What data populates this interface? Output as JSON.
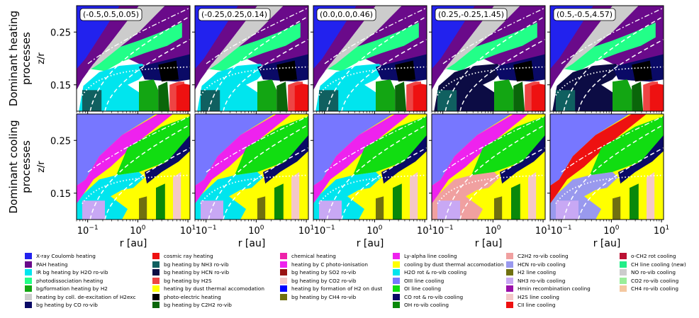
{
  "chart_data": {
    "type": "heatmap",
    "panel_titles": [
      "(-0.5,0.5,0.05)",
      "(-0.25,0.25,0.14)",
      "(0.0,0.0,0.46)",
      "(0.25,-0.25,1.45)",
      "(0.5,-0.5,4.57)"
    ],
    "row_labels": [
      [
        "Dominant heating",
        "processes"
      ],
      [
        "Dominant cooling",
        "processes"
      ]
    ],
    "xlabel": "r [au]",
    "ylabel": "z/r",
    "x_scale": "log",
    "xlim": [
      0.06,
      11
    ],
    "ylim": [
      0.1,
      0.3
    ],
    "x_ticks": [
      {
        "value": 0.1,
        "base": "10",
        "exp": "−1"
      },
      {
        "value": 1,
        "base": "10",
        "exp": "0"
      },
      {
        "value": 10,
        "base": "10",
        "exp": "1"
      }
    ],
    "y_ticks": [
      {
        "value": 0.15,
        "label": "0.15"
      },
      {
        "value": 0.25,
        "label": "0.25"
      }
    ],
    "heating_legend": [
      {
        "label": "X-ray Coulomb heating",
        "color": "#2222ee"
      },
      {
        "label": "PAH heating",
        "color": "#6a0a8a"
      },
      {
        "label": "IR bg heating by H2O ro-vib",
        "color": "#00e5ee"
      },
      {
        "label": "photodissociation heating",
        "color": "#22ff88"
      },
      {
        "label": "bg/formation heating by H2",
        "color": "#13a613"
      },
      {
        "label": "heating by coll. de-excitation of H2exc",
        "color": "#cccccc"
      },
      {
        "label": "bg heating by CO ro-vib",
        "color": "#0a0a66"
      },
      {
        "label": "cosmic ray heating",
        "color": "#ee1111"
      },
      {
        "label": "bg heating by NH3 ro-vib",
        "color": "#106060"
      },
      {
        "label": "bg heating by HCN ro-vib",
        "color": "#0c0c44"
      },
      {
        "label": "bg heating by H2S",
        "color": "#ee4444"
      },
      {
        "label": "heating by dust thermal accomodation",
        "color": "#ffff00"
      },
      {
        "label": "photo-electric heating",
        "color": "#000000"
      },
      {
        "label": "bg heating by C2H2 ro-vib",
        "color": "#0a660a"
      },
      {
        "label": "chemical heating",
        "color": "#ee22aa"
      },
      {
        "label": "heating by C photo-ionisation",
        "color": "#ee22ee"
      },
      {
        "label": "bg heating by SO2 ro-vib",
        "color": "#991111"
      },
      {
        "label": "bg heating by CO2 ro-vib",
        "color": "#f4c8c8"
      },
      {
        "label": "heating by formation of H2 on dust",
        "color": "#0000ff"
      },
      {
        "label": "bg heating by CH4 ro-vib",
        "color": "#707010"
      }
    ],
    "cooling_legend": [
      {
        "label": "Ly-alpha line cooling",
        "color": "#ee22ee"
      },
      {
        "label": "cooling by dust thermal accomodation",
        "color": "#ffff00"
      },
      {
        "label": "H2O rot & ro-vib cooling",
        "color": "#00e5ee"
      },
      {
        "label": "OIII line cooling",
        "color": "#7777ff"
      },
      {
        "label": "OI line cooling",
        "color": "#11dd11"
      },
      {
        "label": "CO rot & ro-vib cooling",
        "color": "#0a0a66"
      },
      {
        "label": "OH ro-vib cooling",
        "color": "#0a880a"
      },
      {
        "label": "C2H2 ro-vib cooling",
        "color": "#f0a0a0"
      },
      {
        "label": "HCN ro-vib cooling",
        "color": "#9999ee"
      },
      {
        "label": "H2 line cooling",
        "color": "#707010"
      },
      {
        "label": "NH3 ro-vib cooling",
        "color": "#c8a8f4"
      },
      {
        "label": "Hmin recombination cooling",
        "color": "#9a10aa"
      },
      {
        "label": "H2S line cooling",
        "color": "#f4c8c8"
      },
      {
        "label": "CII line cooling",
        "color": "#ee1111"
      },
      {
        "label": "o-CH2 rot cooling",
        "color": "#bb1133"
      },
      {
        "label": "CH line cooling (new)",
        "color": "#22ee88"
      },
      {
        "label": "NO ro-vib cooling",
        "color": "#cccccc"
      },
      {
        "label": "CO2 ro-vib cooling",
        "color": "#99ee99"
      },
      {
        "label": "CH4 ro-vib cooling",
        "color": "#f4c8a0"
      }
    ],
    "grid": false
  }
}
